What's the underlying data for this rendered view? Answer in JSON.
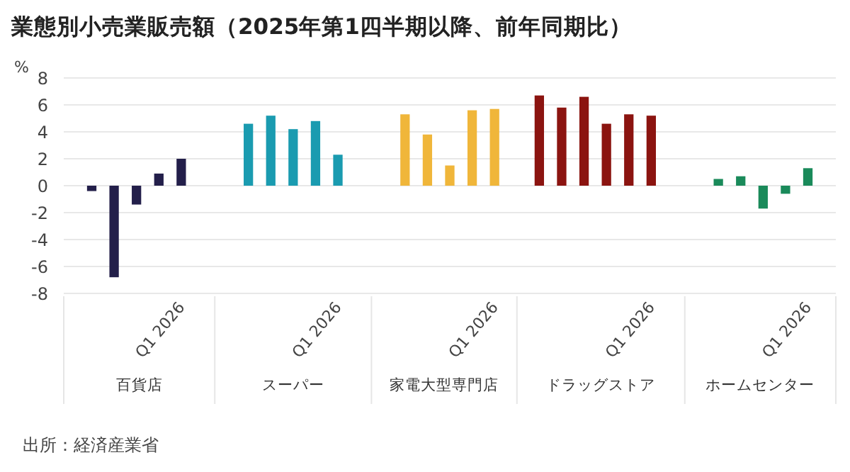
{
  "chart_data": {
    "type": "bar",
    "title": "業態別小売業販売額（2025年第1四半期以降、前年同期比）",
    "ylabel": "%",
    "categories": [
      null,
      null,
      null,
      null,
      "Q1 2026",
      null,
      null,
      null,
      null,
      null,
      null,
      "Q1 2026",
      null,
      null,
      null,
      null,
      null,
      null,
      "Q1 2026",
      null,
      null,
      null,
      null,
      null,
      null,
      "Q1 2026",
      null,
      null,
      null,
      null,
      null,
      null,
      "Q1 2026"
    ],
    "values": [
      -0.4,
      -6.8,
      -1.4,
      0.9,
      2.0,
      null,
      null,
      4.6,
      5.2,
      4.2,
      4.8,
      2.3,
      null,
      null,
      5.3,
      3.8,
      1.5,
      5.6,
      5.7,
      null,
      6.7,
      5.8,
      6.6,
      4.6,
      5.3,
      5.2,
      null,
      null,
      0.5,
      0.7,
      -1.7,
      -0.6,
      1.3
    ],
    "colors": [
      "#231f4a",
      "#231f4a",
      "#231f4a",
      "#231f4a",
      "#231f4a",
      null,
      null,
      "#1a9bb0",
      "#1a9bb0",
      "#1a9bb0",
      "#1a9bb0",
      "#1a9bb0",
      null,
      null,
      "#f0b63a",
      "#f0b63a",
      "#f0b63a",
      "#f0b63a",
      "#f0b63a",
      null,
      "#8b1410",
      "#8b1410",
      "#8b1410",
      "#8b1410",
      "#8b1410",
      "#8b1410",
      null,
      null,
      "#1a8a5a",
      "#1a8a5a",
      "#1a8a5a",
      "#1a8a5a",
      "#1a8a5a"
    ],
    "ylim": [
      -8,
      8
    ],
    "yticks": [
      -8,
      -6,
      -4,
      -2,
      0,
      2,
      4,
      6,
      8
    ],
    "grid": "y",
    "annotations": [
      "百貨店",
      "スーパー",
      "家電大型専門店",
      "ドラッグストア",
      "ホームセンター",
      "出所：経済産業省"
    ]
  }
}
